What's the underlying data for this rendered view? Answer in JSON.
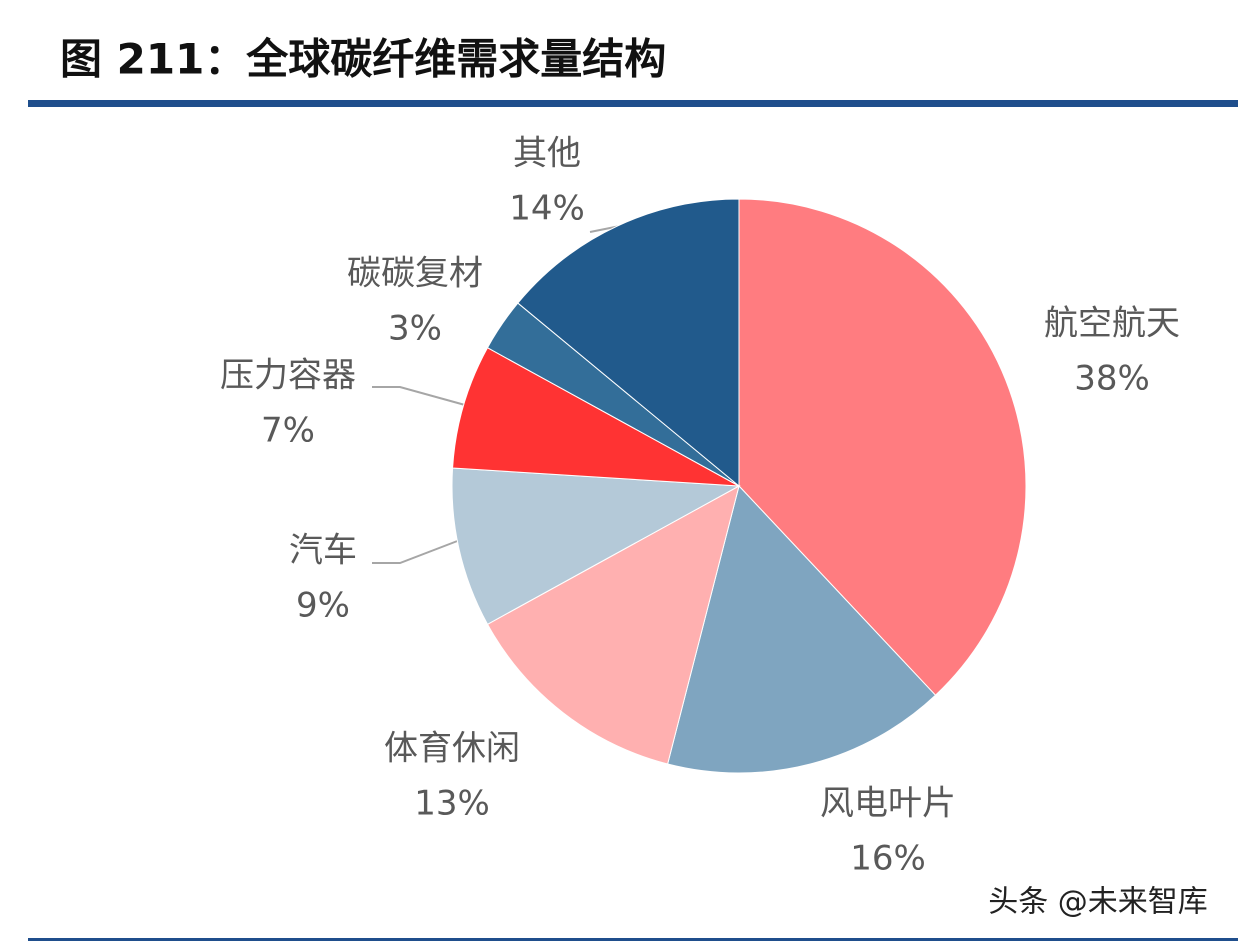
{
  "chart_data": {
    "type": "pie",
    "title": "图 211：全球碳纤维需求量结构",
    "categories": [
      "航空航天",
      "风电叶片",
      "体育休闲",
      "汽车",
      "压力容器",
      "碳碳复材",
      "其他"
    ],
    "values": [
      38,
      16,
      13,
      9,
      7,
      3,
      14
    ],
    "value_labels": [
      "38%",
      "16%",
      "13%",
      "9%",
      "7%",
      "3%",
      "14%"
    ],
    "colors": [
      "#ff7c80",
      "#7fa5c0",
      "#ffb0b0",
      "#b4c9d8",
      "#ff3333",
      "#336e99",
      "#215a8c"
    ]
  },
  "watermark": "头条 @未来智库"
}
